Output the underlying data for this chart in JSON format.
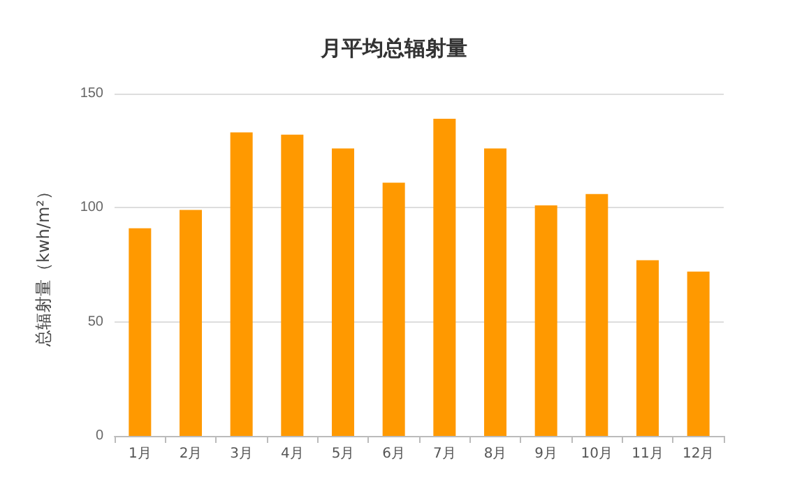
{
  "chart_data": {
    "type": "bar",
    "title": "月平均总辐射量",
    "ylabel": "总辐射量（kwh/m²）",
    "categories": [
      "1月",
      "2月",
      "3月",
      "4月",
      "5月",
      "6月",
      "7月",
      "8月",
      "9月",
      "10月",
      "11月",
      "12月"
    ],
    "values": [
      91,
      99,
      133,
      132,
      126,
      111,
      139,
      126,
      101,
      106,
      77,
      72
    ],
    "color": "#ff9900",
    "ylim": [
      0,
      150
    ],
    "yticks": [
      0,
      50,
      100,
      150
    ],
    "grid": "y"
  }
}
